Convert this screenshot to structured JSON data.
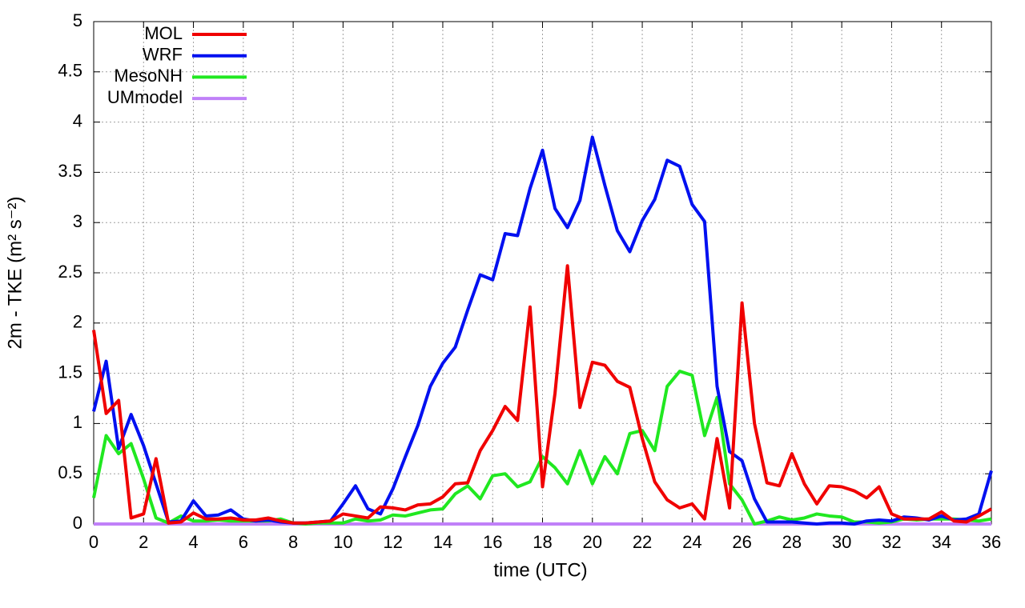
{
  "chart_data": {
    "type": "line",
    "x_label": "time (UTC)",
    "y_label": "2m - TKE (m² s⁻²)",
    "x": [
      0,
      0.5,
      1,
      1.5,
      2,
      2.5,
      3,
      3.5,
      4,
      4.5,
      5,
      5.5,
      6,
      6.5,
      7,
      7.5,
      8,
      8.5,
      9,
      9.5,
      10,
      10.5,
      11,
      11.5,
      12,
      12.5,
      13,
      13.5,
      14,
      14.5,
      15,
      15.5,
      16,
      16.5,
      17,
      17.5,
      18,
      18.5,
      19,
      19.5,
      20,
      20.5,
      21,
      21.5,
      22,
      22.5,
      23,
      23.5,
      24,
      24.5,
      25,
      25.5,
      26,
      26.5,
      27,
      27.5,
      28,
      28.5,
      29,
      29.5,
      30,
      30.5,
      31,
      31.5,
      32,
      32.5,
      33,
      33.5,
      34,
      34.5,
      35,
      35.5,
      36
    ],
    "series": [
      {
        "name": "MOL",
        "color": "#f00000",
        "values": [
          1.93,
          1.1,
          1.23,
          0.06,
          0.1,
          0.65,
          0.01,
          0.02,
          0.11,
          0.05,
          0.05,
          0.06,
          0.04,
          0.04,
          0.06,
          0.03,
          0.01,
          0.01,
          0.02,
          0.03,
          0.1,
          0.08,
          0.06,
          0.17,
          0.16,
          0.14,
          0.19,
          0.2,
          0.27,
          0.4,
          0.41,
          0.73,
          0.93,
          1.17,
          1.03,
          2.16,
          0.37,
          1.3,
          2.57,
          1.16,
          1.61,
          1.58,
          1.42,
          1.36,
          0.85,
          0.42,
          0.24,
          0.16,
          0.2,
          0.05,
          0.85,
          0.16,
          2.2,
          1.0,
          0.41,
          0.38,
          0.7,
          0.4,
          0.2,
          0.38,
          0.37,
          0.33,
          0.26,
          0.37,
          0.1,
          0.05,
          0.05,
          0.05,
          0.12,
          0.03,
          0.02,
          0.08,
          0.15
        ]
      },
      {
        "name": "WRF",
        "color": "#0010f0",
        "values": [
          1.12,
          1.62,
          0.75,
          1.09,
          0.78,
          0.4,
          0.02,
          0.03,
          0.23,
          0.08,
          0.09,
          0.14,
          0.05,
          0.03,
          0.04,
          0.02,
          0.01,
          0.01,
          0.02,
          0.03,
          0.2,
          0.38,
          0.15,
          0.1,
          0.35,
          0.67,
          0.98,
          1.37,
          1.6,
          1.76,
          2.13,
          2.48,
          2.43,
          2.89,
          2.87,
          3.34,
          3.72,
          3.14,
          2.95,
          3.22,
          3.85,
          3.37,
          2.92,
          2.71,
          3.02,
          3.23,
          3.62,
          3.56,
          3.18,
          3.01,
          1.37,
          0.72,
          0.63,
          0.25,
          0.02,
          0.02,
          0.02,
          0.01,
          0.0,
          0.01,
          0.01,
          0.0,
          0.03,
          0.04,
          0.03,
          0.07,
          0.06,
          0.04,
          0.08,
          0.04,
          0.05,
          0.1,
          0.53
        ]
      },
      {
        "name": "MesoNH",
        "color": "#20e820",
        "values": [
          0.26,
          0.88,
          0.7,
          0.8,
          0.45,
          0.06,
          0.01,
          0.08,
          0.03,
          0.03,
          0.04,
          0.03,
          0.03,
          0.03,
          0.03,
          0.05,
          0.01,
          0.0,
          0.01,
          0.01,
          0.01,
          0.05,
          0.03,
          0.04,
          0.09,
          0.08,
          0.11,
          0.14,
          0.15,
          0.3,
          0.38,
          0.25,
          0.48,
          0.5,
          0.37,
          0.42,
          0.67,
          0.56,
          0.4,
          0.73,
          0.4,
          0.67,
          0.5,
          0.9,
          0.93,
          0.73,
          1.37,
          1.52,
          1.48,
          0.88,
          1.26,
          0.4,
          0.24,
          0.0,
          0.03,
          0.07,
          0.04,
          0.06,
          0.1,
          0.08,
          0.07,
          0.02,
          0.02,
          0.01,
          0.02,
          0.05,
          0.04,
          0.05,
          0.05,
          0.05,
          0.04,
          0.03,
          0.05
        ]
      },
      {
        "name": "UMmodel",
        "color": "#c080f8",
        "values": [
          0,
          0,
          0,
          0,
          0,
          0,
          0,
          0,
          0,
          0,
          0,
          0,
          0,
          0,
          0,
          0,
          0,
          0,
          0,
          0,
          0,
          0,
          0,
          0,
          0,
          0,
          0,
          0,
          0,
          0,
          0,
          0,
          0,
          0,
          0,
          0,
          0,
          0,
          0,
          0,
          0,
          0,
          0,
          0,
          0,
          0,
          0,
          0,
          0,
          0,
          0,
          0,
          0,
          0,
          0,
          0,
          0,
          0,
          0,
          0,
          0,
          0,
          0,
          0,
          0,
          0,
          0,
          0,
          0,
          0,
          0,
          0,
          0
        ]
      }
    ],
    "xlim": [
      0,
      36
    ],
    "ylim": [
      0,
      5
    ],
    "xticks": [
      0,
      2,
      4,
      6,
      8,
      10,
      12,
      14,
      16,
      18,
      20,
      22,
      24,
      26,
      28,
      30,
      32,
      34,
      36
    ],
    "yticks": [
      0,
      0.5,
      1,
      1.5,
      2,
      2.5,
      3,
      3.5,
      4,
      4.5,
      5
    ],
    "grid": true,
    "legend": "top-left"
  }
}
